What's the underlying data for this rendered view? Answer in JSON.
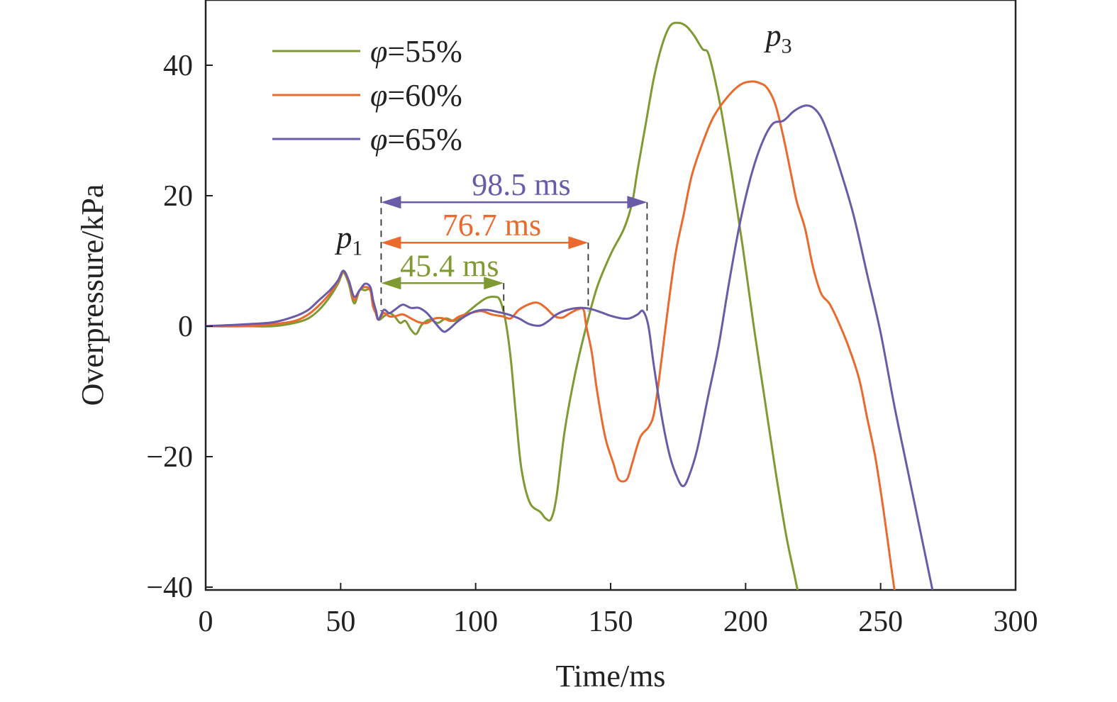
{
  "chart_data": {
    "type": "line",
    "xlabel": "Time/ms",
    "ylabel": "Overpressure/kPa",
    "xlim": [
      0,
      300
    ],
    "ylim": [
      -40,
      50
    ],
    "xticks": [
      0,
      50,
      100,
      150,
      200,
      250,
      300
    ],
    "yticks": [
      -40,
      -20,
      0,
      20,
      40
    ],
    "xtick_labels": [
      "0",
      "50",
      "100",
      "150",
      "200",
      "250",
      "300"
    ],
    "ytick_labels": [
      "−40",
      "−20",
      "0",
      "20",
      "40"
    ],
    "grid": false,
    "legend_position": "top-left",
    "colors": {
      "phi55": "#7f9a32",
      "phi60": "#ea6a2d",
      "phi65": "#6a5aa8",
      "axis": "#222222",
      "dash": "#333333"
    },
    "legend": [
      {
        "symbol": "φ",
        "text": "=55%",
        "series": 0
      },
      {
        "symbol": "φ",
        "text": "=60%",
        "series": 1
      },
      {
        "symbol": "φ",
        "text": "=65%",
        "series": 2
      }
    ],
    "peak_labels": [
      {
        "base": "p",
        "sub": "1",
        "x": 50,
        "y": 12
      },
      {
        "base": "p",
        "sub": "3",
        "x": 209,
        "y": 43
      }
    ],
    "annotations": [
      {
        "label": "98.5 ms",
        "x_start": 65,
        "x_end": 163.5,
        "y": 19,
        "color": "#6a5aa8"
      },
      {
        "label": "76.7 ms",
        "x_start": 65,
        "x_end": 141.7,
        "y": 12.8,
        "color": "#ea6a2d"
      },
      {
        "label": "45.4 ms",
        "x_start": 65,
        "x_end": 110.4,
        "y": 6.6,
        "color": "#7f9a32"
      }
    ],
    "series": [
      {
        "name": "φ=55%",
        "color": "#7f9a32",
        "points": [
          [
            0,
            0
          ],
          [
            15,
            0
          ],
          [
            25,
            0
          ],
          [
            33,
            0.5
          ],
          [
            38,
            1.2
          ],
          [
            42,
            2.5
          ],
          [
            46,
            4.5
          ],
          [
            49,
            6.5
          ],
          [
            51,
            8.2
          ],
          [
            53,
            6.5
          ],
          [
            55,
            3.5
          ],
          [
            57,
            5.5
          ],
          [
            59,
            5.5
          ],
          [
            61,
            5.5
          ],
          [
            62,
            3
          ],
          [
            63,
            2.5
          ],
          [
            64,
            1
          ],
          [
            66,
            1.5
          ],
          [
            68,
            2
          ],
          [
            70,
            1.5
          ],
          [
            72,
            0.5
          ],
          [
            74,
            0.8
          ],
          [
            76,
            -0.5
          ],
          [
            78,
            -1.2
          ],
          [
            80,
            0.2
          ],
          [
            83,
            1
          ],
          [
            86,
            0.5
          ],
          [
            89,
            1.2
          ],
          [
            92,
            0.8
          ],
          [
            95,
            1.5
          ],
          [
            98,
            2.5
          ],
          [
            101,
            3.5
          ],
          [
            104,
            4.3
          ],
          [
            107,
            4.5
          ],
          [
            109,
            4
          ],
          [
            111,
            1
          ],
          [
            113,
            -5
          ],
          [
            115,
            -14
          ],
          [
            117,
            -22
          ],
          [
            120,
            -27
          ],
          [
            124,
            -28.5
          ],
          [
            126,
            -29.5
          ],
          [
            128,
            -29.5
          ],
          [
            130,
            -26
          ],
          [
            133,
            -16
          ],
          [
            137,
            -7
          ],
          [
            141,
            0
          ],
          [
            145,
            6
          ],
          [
            150,
            11
          ],
          [
            155,
            15
          ],
          [
            158,
            19
          ],
          [
            160,
            24
          ],
          [
            163,
            31
          ],
          [
            166,
            38
          ],
          [
            169,
            43
          ],
          [
            172,
            46
          ],
          [
            175,
            46.5
          ],
          [
            178,
            46
          ],
          [
            181,
            44.5
          ],
          [
            184,
            42.5
          ],
          [
            186,
            42
          ],
          [
            188,
            39
          ],
          [
            191,
            33
          ],
          [
            195,
            23
          ],
          [
            199,
            12
          ],
          [
            203,
            0
          ],
          [
            207,
            -11
          ],
          [
            211,
            -22
          ],
          [
            215,
            -32
          ],
          [
            218,
            -38
          ],
          [
            220,
            -42
          ]
        ]
      },
      {
        "name": "φ=60%",
        "color": "#ea6a2d",
        "points": [
          [
            0,
            0
          ],
          [
            15,
            0
          ],
          [
            25,
            0.3
          ],
          [
            33,
            0.8
          ],
          [
            38,
            1.8
          ],
          [
            42,
            3.2
          ],
          [
            46,
            5
          ],
          [
            49,
            6.8
          ],
          [
            51,
            8.4
          ],
          [
            53,
            6.8
          ],
          [
            55,
            4
          ],
          [
            57,
            5.5
          ],
          [
            59,
            6
          ],
          [
            61,
            5.5
          ],
          [
            62,
            3
          ],
          [
            63,
            2
          ],
          [
            64,
            1
          ],
          [
            66,
            2
          ],
          [
            68,
            1.5
          ],
          [
            70,
            1.5
          ],
          [
            73,
            1.8
          ],
          [
            76,
            1.2
          ],
          [
            79,
            0.6
          ],
          [
            82,
            0.5
          ],
          [
            85,
            1.2
          ],
          [
            88,
            1.2
          ],
          [
            91,
            0.8
          ],
          [
            94,
            1.5
          ],
          [
            98,
            2
          ],
          [
            102,
            2.3
          ],
          [
            106,
            1.8
          ],
          [
            110,
            1.5
          ],
          [
            113,
            1.2
          ],
          [
            116,
            2.5
          ],
          [
            120,
            3.4
          ],
          [
            123,
            3.6
          ],
          [
            126,
            2.8
          ],
          [
            129,
            1.6
          ],
          [
            132,
            1.3
          ],
          [
            135,
            2
          ],
          [
            138,
            2.6
          ],
          [
            140,
            2.5
          ],
          [
            141,
            0
          ],
          [
            143,
            -4
          ],
          [
            145,
            -10
          ],
          [
            148,
            -17
          ],
          [
            151,
            -21
          ],
          [
            153,
            -23.5
          ],
          [
            156,
            -23.5
          ],
          [
            158,
            -21
          ],
          [
            161,
            -17
          ],
          [
            164,
            -15.5
          ],
          [
            166,
            -13.5
          ],
          [
            168,
            -8
          ],
          [
            171,
            2
          ],
          [
            174,
            11
          ],
          [
            177,
            17
          ],
          [
            180,
            23
          ],
          [
            184,
            28
          ],
          [
            188,
            32
          ],
          [
            193,
            35
          ],
          [
            198,
            37
          ],
          [
            202,
            37.5
          ],
          [
            205,
            37.3
          ],
          [
            208,
            36.5
          ],
          [
            211,
            34
          ],
          [
            214,
            29
          ],
          [
            217,
            23
          ],
          [
            219,
            19
          ],
          [
            222,
            15
          ],
          [
            225,
            9
          ],
          [
            228,
            5
          ],
          [
            231,
            3.5
          ],
          [
            234,
            1
          ],
          [
            238,
            -3
          ],
          [
            242,
            -8
          ],
          [
            245,
            -14
          ],
          [
            248,
            -20
          ],
          [
            251,
            -28
          ],
          [
            253,
            -34
          ],
          [
            255,
            -40
          ],
          [
            256,
            -42
          ]
        ]
      },
      {
        "name": "φ=65%",
        "color": "#6a5aa8",
        "points": [
          [
            0,
            0
          ],
          [
            15,
            0.3
          ],
          [
            25,
            0.6
          ],
          [
            33,
            1.5
          ],
          [
            38,
            2.5
          ],
          [
            42,
            4
          ],
          [
            46,
            5.5
          ],
          [
            49,
            7
          ],
          [
            51,
            8.5
          ],
          [
            53,
            7
          ],
          [
            55,
            4.5
          ],
          [
            57,
            5.5
          ],
          [
            59,
            6.5
          ],
          [
            61,
            6
          ],
          [
            62,
            4
          ],
          [
            63,
            2.5
          ],
          [
            64,
            1
          ],
          [
            66,
            2.5
          ],
          [
            68,
            2
          ],
          [
            70,
            2.5
          ],
          [
            73,
            3.3
          ],
          [
            76,
            2.8
          ],
          [
            79,
            2.8
          ],
          [
            82,
            2
          ],
          [
            85,
            0.5
          ],
          [
            88,
            -0.8
          ],
          [
            90,
            -0.5
          ],
          [
            93,
            0.6
          ],
          [
            96,
            1.5
          ],
          [
            100,
            2.3
          ],
          [
            104,
            2.5
          ],
          [
            108,
            2.2
          ],
          [
            112,
            1.8
          ],
          [
            116,
            1.2
          ],
          [
            120,
            0.3
          ],
          [
            124,
            0.1
          ],
          [
            127,
            0.8
          ],
          [
            130,
            1.8
          ],
          [
            134,
            2.5
          ],
          [
            138,
            2.8
          ],
          [
            142,
            2.7
          ],
          [
            146,
            2.2
          ],
          [
            150,
            1.6
          ],
          [
            154,
            1.2
          ],
          [
            157,
            1.2
          ],
          [
            160,
            1.8
          ],
          [
            162,
            2.3
          ],
          [
            164,
            0
          ],
          [
            166,
            -6
          ],
          [
            169,
            -14
          ],
          [
            172,
            -20
          ],
          [
            175,
            -23.5
          ],
          [
            177,
            -24.5
          ],
          [
            179,
            -23
          ],
          [
            182,
            -19
          ],
          [
            186,
            -11
          ],
          [
            190,
            -3
          ],
          [
            194,
            7
          ],
          [
            198,
            16
          ],
          [
            202,
            23
          ],
          [
            206,
            28
          ],
          [
            210,
            31
          ],
          [
            214,
            31.5
          ],
          [
            218,
            33
          ],
          [
            222,
            33.8
          ],
          [
            225,
            33.5
          ],
          [
            228,
            32
          ],
          [
            231,
            29
          ],
          [
            235,
            24
          ],
          [
            240,
            17
          ],
          [
            245,
            8
          ],
          [
            250,
            -1
          ],
          [
            255,
            -12
          ],
          [
            260,
            -22
          ],
          [
            265,
            -32
          ],
          [
            268,
            -38
          ],
          [
            270,
            -42
          ]
        ]
      }
    ]
  }
}
